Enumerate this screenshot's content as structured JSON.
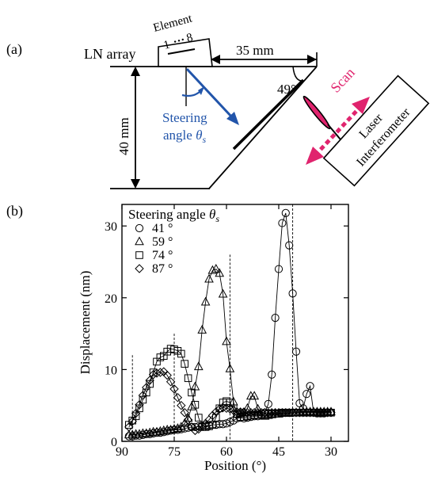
{
  "panel_a": {
    "label": "(a)",
    "element_label": "Element",
    "element_range_start": "1",
    "element_range_end": "8",
    "array_label": "LN array",
    "width_dim": "35 mm",
    "height_dim": "40 mm",
    "angle_label": "49°",
    "steering_label_line1": "Steering",
    "steering_label_line2": "angle",
    "steering_symbol": "θ",
    "steering_subscript": "s",
    "scan_label": "Scan",
    "interferometer_line1": "Laser",
    "interferometer_line2": "Interferometer",
    "colors": {
      "steering": "#2255aa",
      "scan": "#e0246e",
      "beam": "#000000"
    }
  },
  "panel_b": {
    "label": "(b)"
  },
  "chart_data": {
    "type": "scatter",
    "title": "",
    "xlabel": "Position (°)",
    "ylabel": "Displacement (nm)",
    "xlim": [
      90,
      25
    ],
    "ylim": [
      0,
      33
    ],
    "x_ticks": [
      90,
      75,
      60,
      45,
      30
    ],
    "y_ticks": [
      0,
      10,
      20,
      30
    ],
    "legend_title": "Steering angle",
    "legend_symbol": "θ",
    "legend_subscript": "s",
    "legend_position": "top-left",
    "reference_lines": [
      87,
      75,
      59,
      41
    ],
    "series": [
      {
        "name": "41 °",
        "marker": "circle",
        "x": [
          88,
          87,
          86,
          85,
          84,
          83,
          82,
          81,
          80,
          79,
          78,
          77,
          76,
          75,
          74,
          73,
          72,
          71,
          70,
          69,
          68,
          67,
          66,
          65,
          64,
          63,
          62,
          61,
          60,
          59,
          58,
          57,
          56,
          55,
          54,
          53,
          52,
          51,
          50,
          49,
          48,
          47,
          46,
          45,
          44,
          43,
          42,
          41,
          40,
          39,
          38,
          37,
          36,
          35,
          34,
          33,
          32,
          31,
          30
        ],
        "values": [
          0.7,
          0.7,
          0.8,
          0.8,
          0.9,
          1.0,
          1.0,
          1.1,
          1.2,
          1.2,
          1.3,
          1.4,
          1.5,
          1.6,
          1.6,
          1.7,
          1.8,
          1.9,
          2.0,
          2.0,
          2.1,
          2.1,
          2.2,
          2.2,
          2.3,
          2.3,
          2.4,
          2.4,
          2.5,
          2.7,
          2.9,
          3.2,
          3.3,
          3.2,
          3.3,
          3.4,
          3.5,
          3.5,
          3.6,
          4.0,
          5.2,
          9.3,
          17.2,
          24.0,
          30.4,
          31.8,
          27.3,
          20.6,
          12.5,
          5.3,
          4.6,
          6.6,
          7.7,
          4.0,
          3.9,
          3.9,
          3.9,
          4.0,
          4.0
        ]
      },
      {
        "name": "59 °",
        "marker": "triangle",
        "x": [
          88,
          87,
          86,
          85,
          84,
          83,
          82,
          81,
          80,
          79,
          78,
          77,
          76,
          75,
          74,
          73,
          72,
          71,
          70,
          69,
          68,
          67,
          66,
          65,
          64,
          63,
          62,
          61,
          60,
          59,
          58,
          57,
          56,
          55,
          54,
          53,
          52,
          51,
          50,
          49,
          48,
          47,
          46,
          45,
          44,
          43,
          42,
          41,
          40,
          39,
          38,
          37,
          36,
          35,
          34,
          33,
          32,
          31,
          30
        ],
        "values": [
          0.9,
          0.9,
          1.0,
          1.0,
          1.1,
          1.1,
          1.2,
          1.3,
          1.3,
          1.4,
          1.5,
          1.6,
          1.6,
          1.7,
          1.8,
          2.0,
          2.5,
          3.2,
          4.8,
          7.6,
          10.4,
          15.5,
          19.4,
          22.6,
          23.8,
          24.0,
          23.4,
          20.5,
          13.9,
          10.1,
          5.5,
          3.8,
          3.9,
          4.0,
          4.6,
          6.3,
          6.3,
          4.5,
          3.6,
          3.5,
          3.6,
          3.7,
          3.8,
          3.8,
          3.9,
          3.9,
          3.9,
          4.0,
          4.0,
          4.0,
          4.1,
          4.1,
          4.1,
          4.1,
          4.1,
          4.1,
          4.1,
          4.1,
          4.1
        ]
      },
      {
        "name": "74 °",
        "marker": "square",
        "x": [
          88,
          87,
          86,
          85,
          84,
          83,
          82,
          81,
          80,
          79,
          78,
          77,
          76,
          75,
          74,
          73,
          72,
          71,
          70,
          69,
          68,
          67,
          66,
          65,
          64,
          63,
          62,
          61,
          60,
          59,
          58,
          57,
          56,
          55,
          54,
          53,
          52,
          51,
          50,
          49,
          48,
          47,
          46,
          45,
          44,
          43,
          42,
          41,
          40,
          39,
          38,
          37,
          36,
          35,
          34,
          33,
          32,
          31,
          30
        ],
        "values": [
          2.3,
          2.9,
          3.5,
          4.6,
          5.8,
          6.8,
          8.0,
          9.6,
          11.1,
          11.7,
          11.9,
          12.5,
          12.9,
          12.8,
          12.6,
          12.2,
          10.8,
          8.8,
          6.8,
          5.1,
          3.3,
          2.0,
          2.0,
          2.1,
          2.3,
          3.3,
          4.6,
          5.4,
          5.6,
          5.4,
          4.6,
          3.8,
          3.4,
          3.4,
          3.5,
          3.6,
          3.7,
          3.7,
          3.8,
          3.8,
          3.8,
          3.9,
          3.9,
          3.9,
          4.0,
          4.0,
          4.0,
          4.0,
          4.0,
          4.0,
          4.0,
          4.0,
          4.0,
          4.0,
          4.0,
          4.0,
          4.0,
          4.0,
          4.0
        ]
      },
      {
        "name": "87 °",
        "marker": "diamond",
        "x": [
          88,
          87,
          86,
          85,
          84,
          83,
          82,
          81,
          80,
          79,
          78,
          77,
          76,
          75,
          74,
          73,
          72,
          71,
          70,
          69,
          68,
          67,
          66,
          65,
          64,
          63,
          62,
          61,
          60,
          59,
          58,
          57,
          56,
          55,
          54,
          53,
          52,
          51,
          50,
          49,
          48,
          47,
          46,
          45,
          44,
          43,
          42,
          41,
          40,
          39,
          38,
          37,
          36,
          35,
          34,
          33,
          32,
          31,
          30
        ],
        "values": [
          2.0,
          2.8,
          3.9,
          5.1,
          6.4,
          7.5,
          8.5,
          9.3,
          9.5,
          9.6,
          9.7,
          9.2,
          8.3,
          7.3,
          6.1,
          5.0,
          4.0,
          3.0,
          2.0,
          1.5,
          1.7,
          2.2,
          2.5,
          3.0,
          3.6,
          4.1,
          4.5,
          4.7,
          4.6,
          4.5,
          4.3,
          4.1,
          4.1,
          4.1,
          4.0,
          4.0,
          4.0,
          4.0,
          4.0,
          4.0,
          4.0,
          4.0,
          4.0,
          4.0,
          4.0,
          4.0,
          4.0,
          4.0,
          4.0,
          4.0,
          4.0,
          4.0,
          4.0,
          4.0,
          4.0,
          4.0,
          4.0,
          4.0,
          4.0
        ]
      }
    ]
  }
}
